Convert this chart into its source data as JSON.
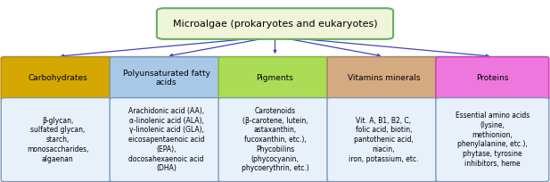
{
  "title": "Microalgae (prokaryotes and eukaryotes)",
  "title_box_color": "#eef5d8",
  "title_box_edge": "#6aaa6a",
  "arrow_color": "#4444bb",
  "categories": [
    "Carbohydrates",
    "Polyunsaturated fatty\nacids",
    "Pigments",
    "Vitamins minerals",
    "Proteins"
  ],
  "cat_colors": [
    "#d4a800",
    "#a8c8e8",
    "#aadd55",
    "#d4aa80",
    "#ee77dd"
  ],
  "cat_edge_colors": [
    "#c09000",
    "#7898b8",
    "#88bb33",
    "#b08860",
    "#cc44bb"
  ],
  "detail_box_color": "#e8f0fa",
  "detail_box_edge": "#7898b8",
  "cat_text_color": [
    "#000000",
    "#000000",
    "#000000",
    "#000000",
    "#000000"
  ],
  "details": [
    "β-glycan,\nsulfated glycan,\nstarch,\nmonosaccharides,\nalgaenan",
    "Arachidonic acid (AA),\nα-linolenic acid (ALA),\nγ-linolenic acid (GLA),\neicosapentaenoic acid\n(EPA),\ndocosahexaenoic acid\n(DHA)",
    "Carotenoids\n(β-carotene, lutein,\nastaxanthin,\nfucoxanthin, etc.),\nPhycobilins\n(phycocyanin,\nphycoerythrin, etc.)",
    "Vit. A, B1, B2, C,\nfolic acid, biotin,\npantothenic acid,\nniacin,\niron, potassium, etc.",
    "Essential amino acids\n(lysine,\nmethionion,\nphenylalanine, etc.),\nphytase, tyrosine\ninhibitors, heme"
  ],
  "figsize": [
    6.17,
    2.04
  ],
  "dpi": 100,
  "background_color": "#ffffff",
  "title_fontsize": 8.0,
  "cat_fontsize": 6.5,
  "detail_fontsize": 5.5
}
